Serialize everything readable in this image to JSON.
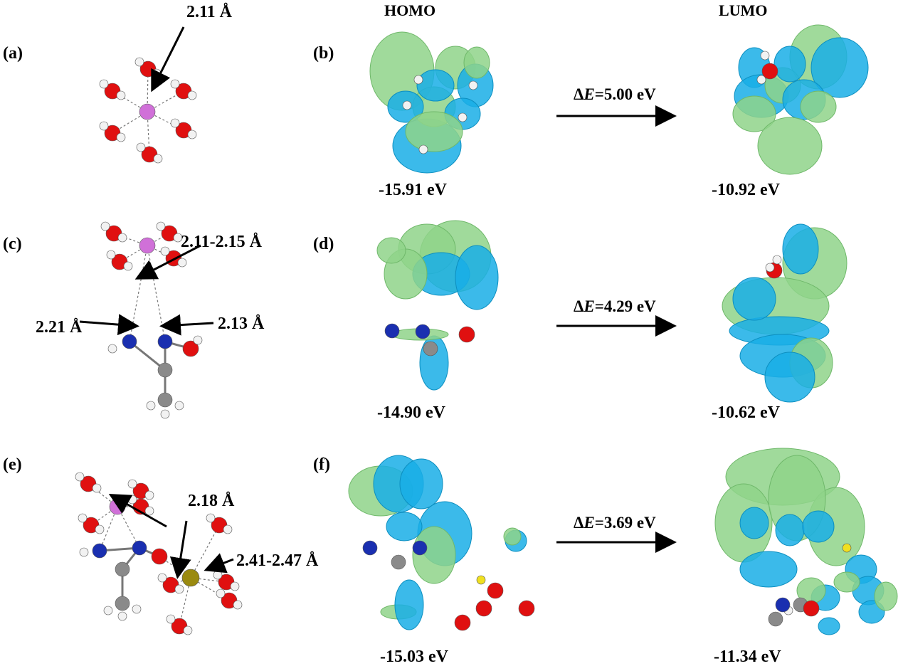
{
  "headers": {
    "homo": "HOMO",
    "lumo": "LUMO"
  },
  "panels": {
    "a": "(a)",
    "b": "(b)",
    "c": "(c)",
    "d": "(d)",
    "e": "(e)",
    "f": "(f)"
  },
  "bond_labels": {
    "a": "2.11 Å",
    "c_top": "2.11-2.15 Å",
    "c_left": "2.21 Å",
    "c_right": "2.13 Å",
    "e_top": "2.18 Å",
    "e_right": "2.41-2.47 Å"
  },
  "energies": {
    "row1_homo": "-15.91 eV",
    "row1_lumo": "-10.92 eV",
    "row2_homo": "-14.90 eV",
    "row2_lumo": "-10.62 eV",
    "row3_homo": "-15.03 eV",
    "row3_lumo": "-11.34 eV"
  },
  "gaps": [
    {
      "delta": "Δ",
      "symbol": "E",
      "value": "=5.00 eV"
    },
    {
      "delta": "Δ",
      "symbol": "E",
      "value": "=4.29 eV"
    },
    {
      "delta": "Δ",
      "symbol": "E",
      "value": "=3.69 eV"
    }
  ],
  "colors": {
    "orbital_positive": "#8fd48a",
    "orbital_negative": "#19aee6",
    "oxygen": "#e01010",
    "hydrogen": "#f2f2f2",
    "manganese": "#d070d8",
    "nitrogen": "#1a2fb0",
    "carbon": "#8a8a8a",
    "iron": "#9a8a10",
    "sulfur_like": "#f0e020"
  }
}
